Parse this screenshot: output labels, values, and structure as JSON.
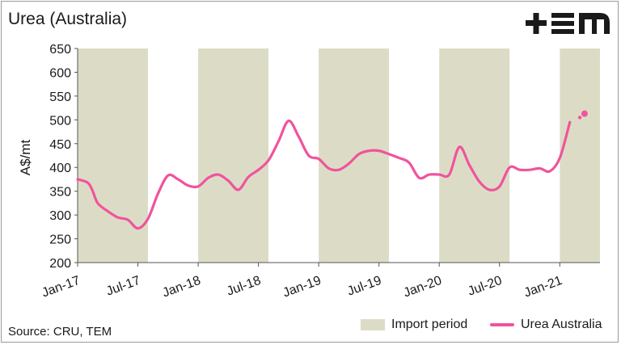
{
  "title": "Urea (Australia)",
  "logo_text": "+EM",
  "source": "Source: CRU, TEM",
  "colors": {
    "line": "#f0549c",
    "band": "#dcdcc6",
    "text": "#1a1a1a"
  },
  "chart_data": {
    "type": "line",
    "title": "Urea (Australia)",
    "ylabel": "A$/mt",
    "xlabel": "",
    "ylim": [
      200,
      650
    ],
    "yticks": [
      200,
      250,
      300,
      350,
      400,
      450,
      500,
      550,
      600,
      650
    ],
    "xlim": [
      "2017-01",
      "2021-05"
    ],
    "xtick_labels": [
      "Jan-17",
      "Jul-17",
      "Jan-18",
      "Jul-18",
      "Jan-19",
      "Jul-19",
      "Jan-20",
      "Jul-20",
      "Jan-21"
    ],
    "xtick_dates": [
      "2017-01",
      "2017-07",
      "2018-01",
      "2018-07",
      "2019-01",
      "2019-07",
      "2020-01",
      "2020-07",
      "2021-01"
    ],
    "grid": false,
    "legend_position": "bottom-right",
    "legend": [
      "Import period",
      "Urea Australia"
    ],
    "import_periods": [
      {
        "start": "2017-01",
        "end": "2017-08"
      },
      {
        "start": "2018-01",
        "end": "2018-08"
      },
      {
        "start": "2019-01",
        "end": "2019-08"
      },
      {
        "start": "2020-01",
        "end": "2020-08"
      },
      {
        "start": "2021-01",
        "end": "2021-05"
      }
    ],
    "series": [
      {
        "name": "Urea Australia",
        "points": [
          [
            "2017-01-01",
            375
          ],
          [
            "2017-02-01",
            368
          ],
          [
            "2017-02-15",
            352
          ],
          [
            "2017-03-01",
            325
          ],
          [
            "2017-04-01",
            308
          ],
          [
            "2017-05-01",
            295
          ],
          [
            "2017-06-01",
            290
          ],
          [
            "2017-07-01",
            272
          ],
          [
            "2017-08-01",
            292
          ],
          [
            "2017-09-01",
            345
          ],
          [
            "2017-10-01",
            383
          ],
          [
            "2017-11-01",
            375
          ],
          [
            "2017-12-01",
            362
          ],
          [
            "2018-01-01",
            360
          ],
          [
            "2018-02-01",
            378
          ],
          [
            "2018-03-01",
            385
          ],
          [
            "2018-04-01",
            372
          ],
          [
            "2018-05-01",
            353
          ],
          [
            "2018-06-01",
            380
          ],
          [
            "2018-07-01",
            395
          ],
          [
            "2018-08-01",
            415
          ],
          [
            "2018-09-01",
            455
          ],
          [
            "2018-10-01",
            498
          ],
          [
            "2018-11-01",
            465
          ],
          [
            "2018-12-01",
            425
          ],
          [
            "2019-01-01",
            418
          ],
          [
            "2019-02-01",
            398
          ],
          [
            "2019-03-01",
            395
          ],
          [
            "2019-04-01",
            408
          ],
          [
            "2019-05-01",
            428
          ],
          [
            "2019-06-01",
            435
          ],
          [
            "2019-07-01",
            435
          ],
          [
            "2019-08-01",
            428
          ],
          [
            "2019-09-01",
            420
          ],
          [
            "2019-10-01",
            410
          ],
          [
            "2019-11-01",
            378
          ],
          [
            "2019-12-01",
            385
          ],
          [
            "2020-01-01",
            385
          ],
          [
            "2020-02-01",
            385
          ],
          [
            "2020-03-01",
            443
          ],
          [
            "2020-04-01",
            405
          ],
          [
            "2020-05-01",
            370
          ],
          [
            "2020-06-01",
            353
          ],
          [
            "2020-07-01",
            360
          ],
          [
            "2020-08-01",
            400
          ],
          [
            "2020-09-01",
            395
          ],
          [
            "2020-10-01",
            395
          ],
          [
            "2020-11-01",
            398
          ],
          [
            "2020-12-01",
            392
          ],
          [
            "2021-01-01",
            420
          ],
          [
            "2021-02-01",
            495
          ]
        ],
        "extra_points": [
          [
            "2021-03-01",
            505
          ],
          [
            "2021-03-15",
            513
          ]
        ]
      }
    ]
  }
}
